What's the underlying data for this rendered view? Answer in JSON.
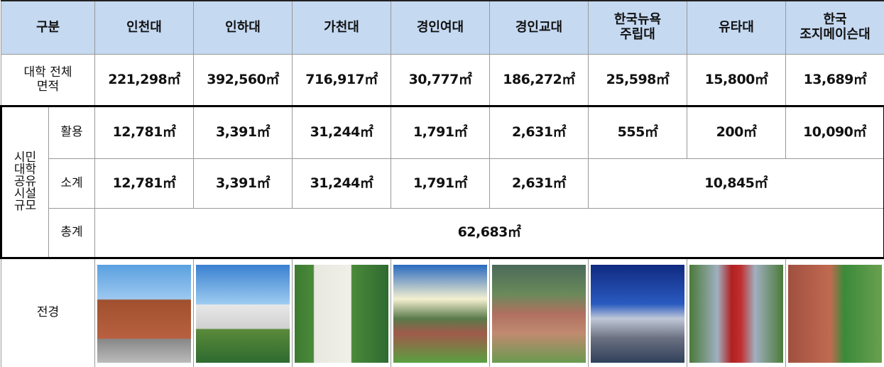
{
  "table": {
    "header": [
      "구분",
      "인천대",
      "인하대",
      "가천대",
      "경인여대",
      "경인교대",
      "한국뉴욕\n주립대",
      "유타대",
      "한국\n조지메이슨대"
    ],
    "total_area": {
      "label": "대학 전체\n면적",
      "values": [
        "221,298㎡",
        "392,560㎡",
        "716,917㎡",
        "30,777㎡",
        "186,272㎡",
        "25,598㎡",
        "15,800㎡",
        "13,689㎡"
      ]
    },
    "group_label": "시민\n대학\n공유\n시설\n규모",
    "usage": {
      "label": "활용",
      "values": [
        "12,781㎡",
        "3,391㎡",
        "31,244㎡",
        "1,791㎡",
        "2,631㎡",
        "555㎡",
        "200㎡",
        "10,090㎡"
      ]
    },
    "subtotal": {
      "label": "소계",
      "values": [
        "12,781㎡",
        "3,391㎡",
        "31,244㎡",
        "1,791㎡",
        "2,631㎡",
        "10,845㎡"
      ]
    },
    "total": {
      "label": "총계",
      "value": "62,683㎡"
    },
    "photos": {
      "label": "전경"
    }
  }
}
